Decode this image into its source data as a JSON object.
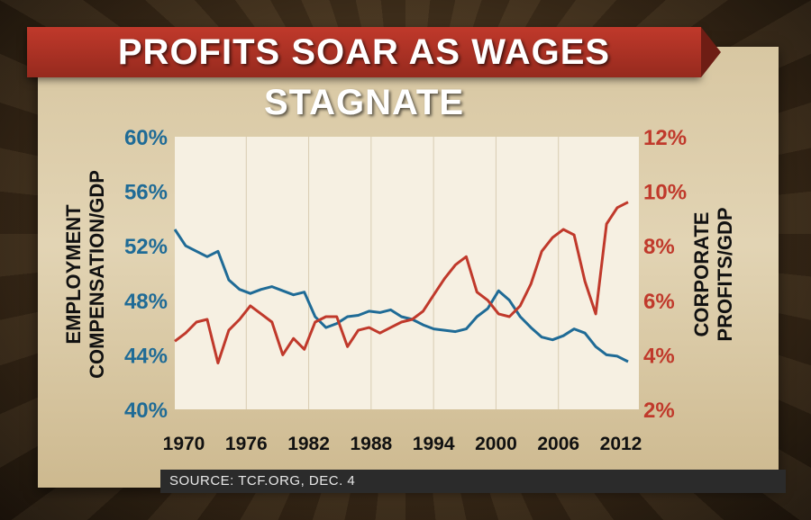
{
  "title": "PROFITS SOAR AS WAGES STAGNATE",
  "source": "SOURCE: TCF.ORG, DEC. 4",
  "colors": {
    "employment": "#1f6b96",
    "profits": "#c0392b"
  },
  "chart_data": {
    "type": "line",
    "x_ticks": [
      "1970",
      "1976",
      "1982",
      "1988",
      "1994",
      "2000",
      "2006",
      "2012"
    ],
    "xlim": [
      1970,
      2013
    ],
    "left_axis": {
      "label": "EMPLOYMENT COMPENSATION/GDP",
      "ticks": [
        "40%",
        "44%",
        "48%",
        "52%",
        "56%",
        "60%"
      ],
      "ylim": [
        40,
        60
      ]
    },
    "right_axis": {
      "label": "CORPORATE PROFITS/GDP",
      "ticks": [
        "2%",
        "4%",
        "6%",
        "8%",
        "10%",
        "12%"
      ],
      "ylim": [
        2,
        12
      ]
    },
    "series": [
      {
        "name": "EMPLOYMENT COMPENSATION/GDP",
        "axis": "left",
        "x": [
          1970,
          1971,
          1972,
          1973,
          1974,
          1975,
          1976,
          1977,
          1978,
          1979,
          1980,
          1981,
          1982,
          1983,
          1984,
          1985,
          1986,
          1987,
          1988,
          1989,
          1990,
          1991,
          1992,
          1993,
          1994,
          1995,
          1996,
          1997,
          1998,
          1999,
          2000,
          2001,
          2002,
          2003,
          2004,
          2005,
          2006,
          2007,
          2008,
          2009,
          2010,
          2011,
          2012
        ],
        "y": [
          53.2,
          52.0,
          51.6,
          51.2,
          51.6,
          49.5,
          48.8,
          48.5,
          48.8,
          49.0,
          48.7,
          48.4,
          48.6,
          46.8,
          46.0,
          46.3,
          46.8,
          46.9,
          47.2,
          47.1,
          47.3,
          46.8,
          46.6,
          46.2,
          45.9,
          45.8,
          45.7,
          45.9,
          46.8,
          47.4,
          48.7,
          48.0,
          46.8,
          46.0,
          45.3,
          45.1,
          45.4,
          45.9,
          45.6,
          44.6,
          44.0,
          43.9,
          43.5
        ]
      },
      {
        "name": "CORPORATE PROFITS/GDP",
        "axis": "right",
        "x": [
          1970,
          1971,
          1972,
          1973,
          1974,
          1975,
          1976,
          1977,
          1978,
          1979,
          1980,
          1981,
          1982,
          1983,
          1984,
          1985,
          1986,
          1987,
          1988,
          1989,
          1990,
          1991,
          1992,
          1993,
          1994,
          1995,
          1996,
          1997,
          1998,
          1999,
          2000,
          2001,
          2002,
          2003,
          2004,
          2005,
          2006,
          2007,
          2008,
          2009,
          2010,
          2011,
          2012
        ],
        "y": [
          4.5,
          4.8,
          5.2,
          5.3,
          3.7,
          4.9,
          5.3,
          5.8,
          5.5,
          5.2,
          4.0,
          4.6,
          4.2,
          5.2,
          5.4,
          5.4,
          4.3,
          4.9,
          5.0,
          4.8,
          5.0,
          5.2,
          5.3,
          5.6,
          6.2,
          6.8,
          7.3,
          7.6,
          6.3,
          6.0,
          5.5,
          5.4,
          5.8,
          6.6,
          7.8,
          8.3,
          8.6,
          8.4,
          6.7,
          5.5,
          8.8,
          9.4,
          9.6
        ]
      }
    ]
  }
}
